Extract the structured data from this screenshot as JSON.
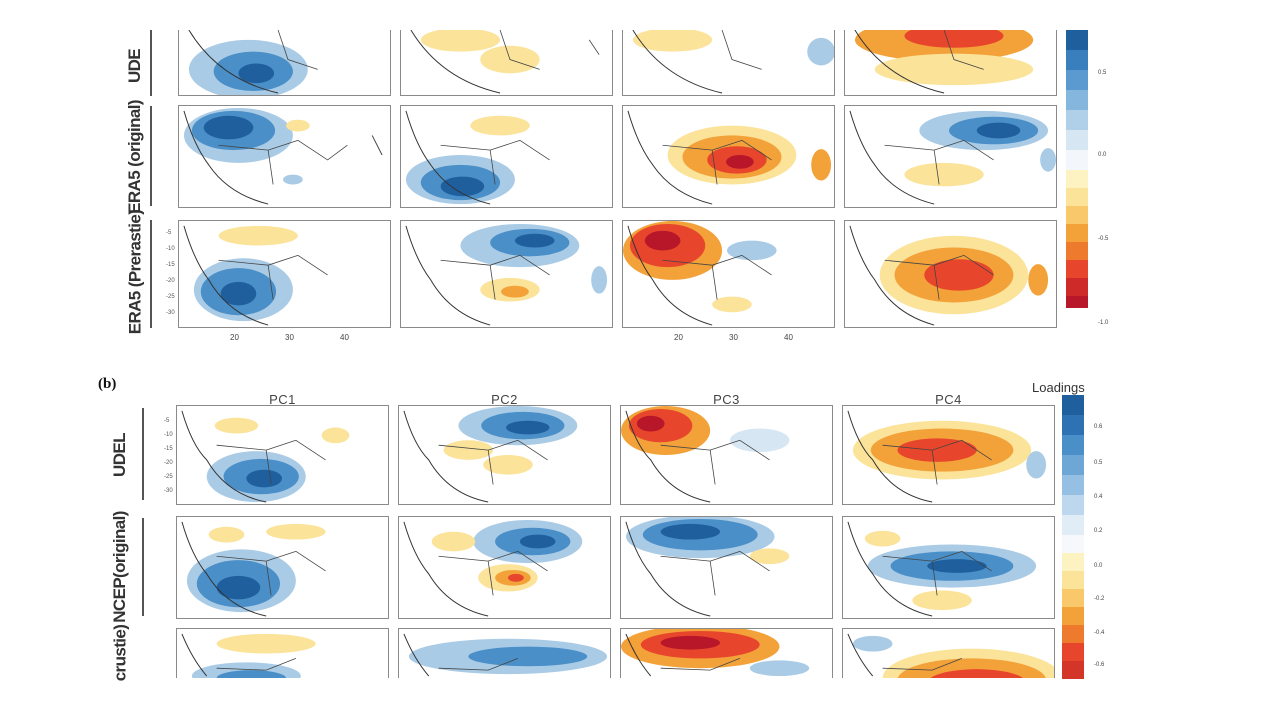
{
  "figure": {
    "panel_b_label": "(b)",
    "column_titles": [
      "PC1",
      "PC2",
      "PC3",
      "PC4"
    ],
    "colorbar_title": "Loadings",
    "top_row_labels": [
      "UDE",
      "ERA5 (original)",
      "ERA5 (Prerastie)"
    ],
    "bottom_row_labels": [
      "UDEL",
      "NCEP(original)",
      "crustie)"
    ],
    "top_yticks": [
      "-5",
      "-10",
      "-15",
      "-20",
      "-25",
      "-30"
    ],
    "top_xticks": [
      "20",
      "30",
      "40"
    ],
    "top_colorbar_ticks": [
      "0.5",
      "0.0",
      "-0.5",
      "-1.0"
    ],
    "bottom_colorbar_ticks": [
      "0.6",
      "0.5",
      "0.4",
      "0.2",
      "0.0",
      "-0.2",
      "-0.4",
      "-0.6"
    ],
    "colors": {
      "blue_dark": "#1f5f9e",
      "blue": "#4a8fc7",
      "blue_light": "#a9cbe6",
      "white": "#f5f8fb",
      "yellow": "#fbe39a",
      "orange": "#f3a23a",
      "red": "#e8462c",
      "red_dark": "#b8172a"
    }
  }
}
